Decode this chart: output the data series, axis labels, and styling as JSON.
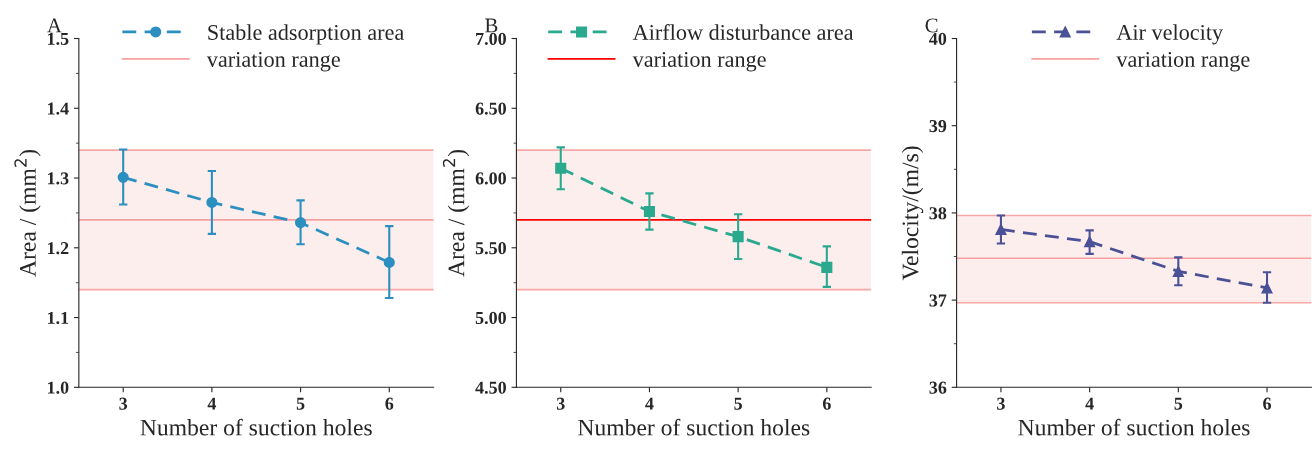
{
  "chart_data": [
    {
      "type": "line",
      "title": "A",
      "xlabel": "Number of suction holes",
      "ylabel": "Area / (mm$^{2}$)",
      "x": [
        3,
        4,
        5,
        6
      ],
      "xlim": [
        2.5,
        6.5
      ],
      "xticks": [
        3,
        4,
        5,
        6
      ],
      "ylim": [
        1.0,
        1.5
      ],
      "yticks": [
        {
          "value": 1.0,
          "label": "1.0"
        },
        1.1,
        1.2,
        1.3,
        1.4,
        1.5
      ],
      "marker": "circle",
      "line_style": "dashed",
      "legend": "top",
      "grid": false,
      "series": [
        {
          "name": "Stable adsorption area",
          "color": "#2b8fc0",
          "values": [
            1.301,
            1.265,
            1.236,
            1.179
          ],
          "errors": [
            [
              1.262,
              1.341
            ],
            [
              1.22,
              1.31
            ],
            [
              1.205,
              1.268
            ],
            [
              1.128,
              1.231
            ]
          ]
        }
      ],
      "ref_lines": [
        {
          "axis": "y",
          "value": 1.24,
          "label": "variation range",
          "color": "#f9a0a0",
          "line_style": "solid"
        },
        {
          "axis": "y",
          "value": 1.14,
          "color": "#f9a8a8",
          "line_style": "solid"
        },
        {
          "axis": "y",
          "value": 1.34,
          "color": "#f9a8a8",
          "line_style": "solid"
        }
      ],
      "bands": [
        {
          "axis": "y",
          "from": 1.14,
          "to": 1.34,
          "color": "#fdeeee"
        }
      ]
    },
    {
      "type": "line",
      "title": "B",
      "xlabel": "Number of suction holes",
      "ylabel": "Area / (mm$^{2}$)",
      "x": [
        3,
        4,
        5,
        6
      ],
      "xlim": [
        2.5,
        6.5
      ],
      "xticks": [
        3,
        4,
        5,
        6
      ],
      "ylim": [
        4.5,
        7.0
      ],
      "yticks": [
        {
          "value": 4.5,
          "label": "4.50"
        },
        {
          "value": 5.0,
          "label": "5.00"
        },
        {
          "value": 5.5,
          "label": "5.50"
        },
        {
          "value": 6.0,
          "label": "6.00"
        },
        {
          "value": 6.5,
          "label": "6.50"
        },
        {
          "value": 7.0,
          "label": "7.00"
        }
      ],
      "marker": "square",
      "line_style": "dashed",
      "legend": "top",
      "grid": false,
      "series": [
        {
          "name": "Airflow disturbance area",
          "color": "#2aa98f",
          "values": [
            6.07,
            5.76,
            5.58,
            5.36
          ],
          "errors": [
            [
              5.92,
              6.22
            ],
            [
              5.63,
              5.89
            ],
            [
              5.42,
              5.74
            ],
            [
              5.22,
              5.51
            ]
          ]
        }
      ],
      "ref_lines": [
        {
          "axis": "y",
          "value": 5.7,
          "label": "variation range",
          "color": "#ff0000",
          "line_style": "solid"
        },
        {
          "axis": "y",
          "value": 5.2,
          "color": "#f9a8a8",
          "line_style": "solid"
        },
        {
          "axis": "y",
          "value": 6.2,
          "color": "#f9a8a8",
          "line_style": "solid"
        }
      ],
      "bands": [
        {
          "axis": "y",
          "from": 5.2,
          "to": 6.2,
          "color": "#fdeeee"
        }
      ]
    },
    {
      "type": "line",
      "title": "C",
      "xlabel": "Number of suction holes",
      "ylabel": "Velocity/(m/s)",
      "x": [
        3,
        4,
        5,
        6
      ],
      "xlim": [
        2.5,
        6.5
      ],
      "xticks": [
        3,
        4,
        5,
        6
      ],
      "ylim": [
        36,
        40
      ],
      "yticks": [
        36,
        37,
        38,
        39,
        40
      ],
      "marker": "triangle",
      "line_style": "dashed",
      "legend": "top",
      "grid": false,
      "series": [
        {
          "name": "Air velocity",
          "color": "#4a5196",
          "values": [
            37.81,
            37.67,
            37.33,
            37.14
          ],
          "errors": [
            [
              37.65,
              37.97
            ],
            [
              37.53,
              37.8
            ],
            [
              37.17,
              37.49
            ],
            [
              36.97,
              37.32
            ]
          ]
        }
      ],
      "ref_lines": [
        {
          "axis": "y",
          "value": 37.48,
          "label": "variation range",
          "color": "#f9a0a0",
          "line_style": "solid"
        },
        {
          "axis": "y",
          "value": 36.97,
          "color": "#f9a8a8",
          "line_style": "solid"
        },
        {
          "axis": "y",
          "value": 37.97,
          "color": "#f9a8a8",
          "line_style": "solid"
        }
      ],
      "bands": [
        {
          "axis": "y",
          "from": 36.97,
          "to": 37.97,
          "color": "#fdeeee"
        }
      ]
    }
  ]
}
